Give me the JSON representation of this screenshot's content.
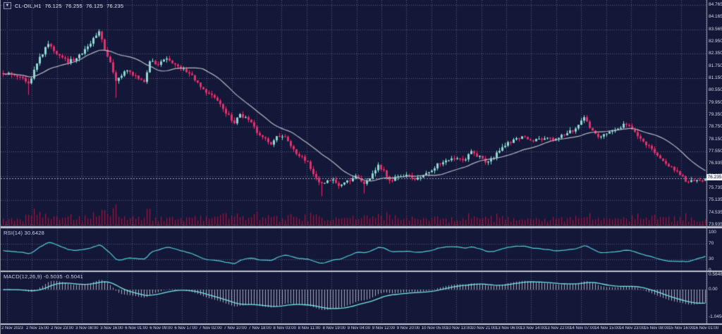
{
  "header": {
    "marker": "▼",
    "symbol": "CL-OIL,H1",
    "open": "76.125",
    "high": "76.255",
    "low": "76.125",
    "close": "76.235"
  },
  "chart_data": {
    "type": "candlestick",
    "title": "CL-OIL,H1",
    "symbol": "CL-OIL",
    "timeframe": "H1",
    "ohlc_header": {
      "open": 76.125,
      "high": 76.255,
      "low": 76.125,
      "close": 76.235
    },
    "current_price_badge": "76.235",
    "price_axis_ticks": [
      "84.765",
      "84.165",
      "83.565",
      "82.950",
      "82.350",
      "81.750",
      "81.150",
      "80.550",
      "79.950",
      "79.350",
      "78.750",
      "78.150",
      "77.550",
      "76.935",
      "76.335",
      "75.735",
      "75.135",
      "74.535",
      "73.935"
    ],
    "time_axis_ticks": [
      "2 Nov 2023",
      "2 Nov 15:00",
      "2 Nov 23:00",
      "3 Nov 08:00",
      "3 Nov 16:00",
      "6 Nov 01:00",
      "6 Nov 09:00",
      "6 Nov 17:00",
      "7 Nov 02:00",
      "7 Nov 10:00",
      "7 Nov 18:00",
      "8 Nov 03:00",
      "8 Nov 11:00",
      "8 Nov 19:00",
      "9 Nov 04:00",
      "9 Nov 12:00",
      "9 Nov 20:00",
      "10 Nov 05:00",
      "10 Nov 13:00",
      "10 Nov 21:00",
      "13 Nov 06:00",
      "13 Nov 14:00",
      "13 Nov 22:00",
      "14 Nov 07:00",
      "14 Nov 15:00",
      "14 Nov 23:00",
      "15 Nov 08:00",
      "15 Nov 16:00",
      "16 Nov 01:00"
    ],
    "bars_count": 250,
    "price_path_anchors": [
      [
        0,
        81.45
      ],
      [
        4,
        81.3
      ],
      [
        8,
        81.05
      ],
      [
        9,
        80.85
      ],
      [
        12,
        81.9
      ],
      [
        16,
        82.9
      ],
      [
        19,
        82.35
      ],
      [
        23,
        81.95
      ],
      [
        27,
        82.25
      ],
      [
        31,
        82.9
      ],
      [
        34,
        83.4
      ],
      [
        36,
        82.6
      ],
      [
        38,
        81.9
      ],
      [
        40,
        81.05
      ],
      [
        42,
        81.3
      ],
      [
        44,
        81.55
      ],
      [
        47,
        81.25
      ],
      [
        50,
        80.95
      ],
      [
        52,
        81.95
      ],
      [
        55,
        81.9
      ],
      [
        58,
        82.1
      ],
      [
        61,
        81.85
      ],
      [
        64,
        81.6
      ],
      [
        67,
        81.25
      ],
      [
        71,
        80.55
      ],
      [
        75,
        80.25
      ],
      [
        79,
        79.45
      ],
      [
        82,
        78.95
      ],
      [
        84,
        79.35
      ],
      [
        87,
        79.15
      ],
      [
        90,
        78.5
      ],
      [
        93,
        78.15
      ],
      [
        95,
        77.9
      ],
      [
        97,
        78.25
      ],
      [
        100,
        78.3
      ],
      [
        103,
        77.6
      ],
      [
        106,
        77.3
      ],
      [
        108,
        77.0
      ],
      [
        110,
        76.45
      ],
      [
        113,
        75.95
      ],
      [
        116,
        76.2
      ],
      [
        119,
        75.95
      ],
      [
        122,
        76.1
      ],
      [
        125,
        76.3
      ],
      [
        128,
        75.95
      ],
      [
        131,
        76.45
      ],
      [
        133,
        76.85
      ],
      [
        135,
        76.6
      ],
      [
        137,
        76.15
      ],
      [
        140,
        76.3
      ],
      [
        143,
        76.4
      ],
      [
        146,
        76.2
      ],
      [
        149,
        76.45
      ],
      [
        152,
        76.7
      ],
      [
        155,
        77.0
      ],
      [
        158,
        77.15
      ],
      [
        161,
        77.3
      ],
      [
        163,
        77.1
      ],
      [
        166,
        77.55
      ],
      [
        169,
        77.3
      ],
      [
        171,
        77.0
      ],
      [
        174,
        77.3
      ],
      [
        177,
        77.75
      ],
      [
        180,
        78.05
      ],
      [
        184,
        78.3
      ],
      [
        188,
        78.1
      ],
      [
        192,
        78.25
      ],
      [
        196,
        78.15
      ],
      [
        199,
        78.4
      ],
      [
        202,
        78.6
      ],
      [
        205,
        79.1
      ],
      [
        206,
        79.25
      ],
      [
        208,
        78.7
      ],
      [
        211,
        78.3
      ],
      [
        214,
        78.5
      ],
      [
        217,
        78.65
      ],
      [
        220,
        78.85
      ],
      [
        222,
        78.75
      ],
      [
        226,
        78.2
      ],
      [
        229,
        77.8
      ],
      [
        232,
        77.4
      ],
      [
        235,
        77.0
      ],
      [
        238,
        76.7
      ],
      [
        241,
        76.3
      ],
      [
        243,
        76.0
      ],
      [
        245,
        76.15
      ],
      [
        247,
        76.1
      ],
      [
        249,
        76.235
      ]
    ],
    "wick_overrides": [
      [
        9,
        "l",
        80.35
      ],
      [
        16,
        "h",
        83.0
      ],
      [
        34,
        "h",
        83.565
      ],
      [
        40,
        "l",
        80.2
      ],
      [
        113,
        "l",
        75.37
      ],
      [
        128,
        "l",
        75.5
      ],
      [
        206,
        "h",
        79.35
      ]
    ],
    "last_bar": {
      "open": 76.125,
      "high": 76.255,
      "low": 76.125,
      "close": 76.235
    },
    "moving_average": {
      "period": 20
    },
    "volume_shown": true,
    "indicators": {
      "rsi": {
        "label": "RSI(14) 30.6428",
        "period": 14,
        "last_value": 30.6428,
        "levels": [
          70,
          30
        ],
        "axis_ticks": [
          "100",
          "70",
          "30",
          "0"
        ],
        "axis_values": [
          100,
          70,
          30,
          0
        ]
      },
      "macd": {
        "label": "MACD(12,26,9) -0.5035 -0.5041",
        "fast": 12,
        "slow": 26,
        "signal": 9,
        "last_values": [
          -0.5035,
          -0.5041
        ],
        "axis_ticks": [
          "0.5648",
          "0.00",
          "-1.0456"
        ],
        "axis_values": [
          0.5648,
          0.0,
          -1.0456
        ]
      }
    },
    "colors": {
      "background": "#141838",
      "bull": "#8fd8d2",
      "bear": "#e62e6c",
      "volume": "#8e1b47",
      "ma_line": "#b5b8c4",
      "grid": "#565b82",
      "separator": "#c2c5d1",
      "rsi_line": "#54cdd9",
      "macd_line": "#79e4e6",
      "macd_hist": "#cdd3e4",
      "axis_text": "#d6d9ea",
      "bid_line": "#9aa0bd",
      "badge_bg": "#f0f1f5",
      "badge_text": "#10142e"
    }
  }
}
